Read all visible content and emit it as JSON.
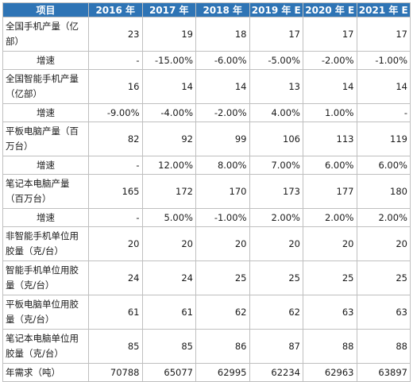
{
  "table": {
    "headers": [
      "项目",
      "2016 年",
      "2017 年",
      "2018 年",
      "2019 年 E",
      "2020 年 E",
      "2021 年 E"
    ],
    "rows": [
      {
        "label": "全国手机产量（亿部）",
        "values": [
          "23",
          "19",
          "18",
          "17",
          "17",
          "17"
        ],
        "kind": "two"
      },
      {
        "label": "增速",
        "values": [
          "-",
          "-15.00%",
          "-6.00%",
          "-5.00%",
          "-2.00%",
          "-1.00%"
        ],
        "kind": "one"
      },
      {
        "label": "全国智能手机产量（亿部）",
        "values": [
          "16",
          "14",
          "14",
          "13",
          "14",
          "14"
        ],
        "kind": "two"
      },
      {
        "label": "增速",
        "values": [
          "-9.00%",
          "-4.00%",
          "-2.00%",
          "4.00%",
          "1.00%",
          "-"
        ],
        "kind": "one"
      },
      {
        "label": "平板电脑产量（百万台）",
        "values": [
          "82",
          "92",
          "99",
          "106",
          "113",
          "119"
        ],
        "kind": "two"
      },
      {
        "label": "增速",
        "values": [
          "-",
          "12.00%",
          "8.00%",
          "7.00%",
          "6.00%",
          "6.00%"
        ],
        "kind": "one"
      },
      {
        "label": "笔记本电脑产量（百万台）",
        "values": [
          "165",
          "172",
          "170",
          "173",
          "177",
          "180"
        ],
        "kind": "two"
      },
      {
        "label": "增速",
        "values": [
          "-",
          "5.00%",
          "-1.00%",
          "2.00%",
          "2.00%",
          "2.00%"
        ],
        "kind": "one"
      },
      {
        "label": "非智能手机单位用胶量（克/台）",
        "values": [
          "20",
          "20",
          "20",
          "20",
          "20",
          "20"
        ],
        "kind": "two"
      },
      {
        "label": "智能手机单位用胶量（克/台）",
        "values": [
          "24",
          "24",
          "25",
          "25",
          "25",
          "25"
        ],
        "kind": "two"
      },
      {
        "label": "平板电脑单位用胶量（克/台）",
        "values": [
          "61",
          "61",
          "62",
          "62",
          "63",
          "63"
        ],
        "kind": "two"
      },
      {
        "label": "笔记本电脑单位用胶量（克/台）",
        "values": [
          "85",
          "85",
          "86",
          "87",
          "88",
          "88"
        ],
        "kind": "two"
      },
      {
        "label": "年需求（吨）",
        "values": [
          "70788",
          "65077",
          "62995",
          "62234",
          "62963",
          "63897"
        ],
        "kind": "one"
      }
    ]
  },
  "colors": {
    "header_bg": "#2e74b5",
    "header_text": "#ffffff",
    "border": "#bfbfbf"
  }
}
